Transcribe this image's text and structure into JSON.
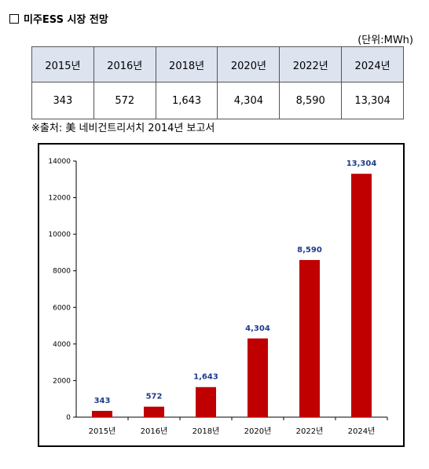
{
  "heading": {
    "box": "□",
    "title": "미주ESS 시장 전망"
  },
  "unit": "(단위:MWh)",
  "table": {
    "headers": [
      "2015년",
      "2016년",
      "2018년",
      "2020년",
      "2022년",
      "2024년"
    ],
    "values": [
      "343",
      "572",
      "1,643",
      "4,304",
      "8,590",
      "13,304"
    ]
  },
  "source": "※출처: 美 네비건트리서치 2014년 보고서",
  "colors": {
    "bar": "#c00000",
    "data_label": "#1f3b8c",
    "header_bg": "#dde3ef"
  },
  "chart_data": {
    "type": "bar",
    "categories": [
      "2015년",
      "2016년",
      "2018년",
      "2020년",
      "2022년",
      "2024년"
    ],
    "values": [
      343,
      572,
      1643,
      4304,
      8590,
      13304
    ],
    "data_labels": [
      "343",
      "572",
      "1,643",
      "4,304",
      "8,590",
      "13,304"
    ],
    "yticks": [
      0,
      2000,
      4000,
      6000,
      8000,
      10000,
      12000,
      14000
    ],
    "ylim": [
      0,
      14000
    ],
    "title": "",
    "xlabel": "",
    "ylabel": "",
    "grid": false,
    "legend": "none"
  }
}
